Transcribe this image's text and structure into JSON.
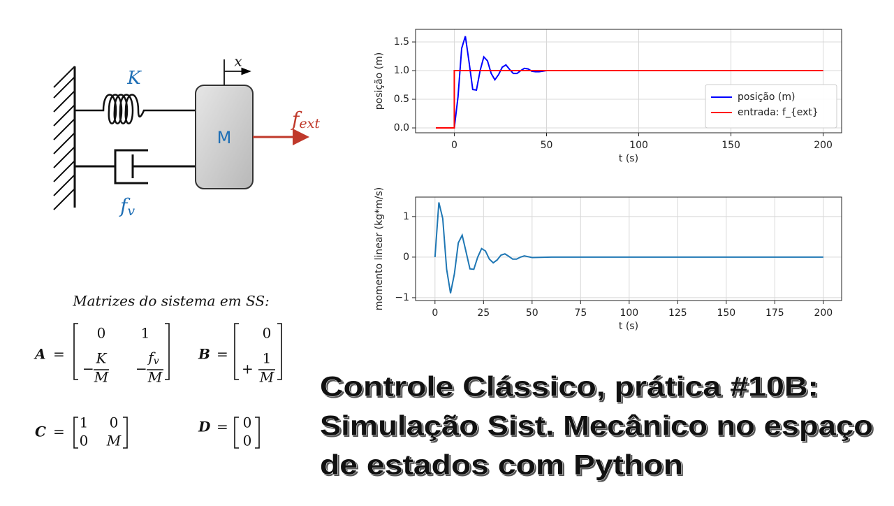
{
  "chart_data": [
    {
      "type": "line",
      "xlabel": "t (s)",
      "ylabel": "posição (m)",
      "xlim": [
        -21,
        210
      ],
      "ylim": [
        -0.085,
        1.72
      ],
      "xticks": [
        0,
        50,
        100,
        150,
        200
      ],
      "yticks": [
        {
          "value": 0,
          "label": "0.0"
        },
        {
          "value": 0.5,
          "label": "0.5"
        },
        {
          "value": 1,
          "label": "1.0"
        },
        {
          "value": 1.5,
          "label": "1.5"
        }
      ],
      "grid": true,
      "legend": "lower right",
      "series": [
        {
          "name": "posição (m)",
          "color": "#0000ff",
          "x": [
            -10,
            0,
            2,
            4,
            6,
            8,
            10,
            12,
            14,
            16,
            18,
            20,
            22,
            24,
            26,
            28,
            30,
            32,
            34,
            36,
            38,
            40,
            42,
            44,
            46,
            50,
            60,
            80,
            100,
            120,
            140,
            160,
            180,
            200
          ],
          "values": [
            0,
            0,
            0.54,
            1.39,
            1.6,
            1.15,
            0.67,
            0.66,
            1.0,
            1.24,
            1.17,
            0.95,
            0.84,
            0.93,
            1.06,
            1.1,
            1.02,
            0.95,
            0.95,
            1.0,
            1.04,
            1.03,
            0.99,
            0.98,
            0.98,
            1.0,
            1.0,
            1.0,
            1.0,
            1.0,
            1.0,
            1.0,
            1.0,
            1.0
          ]
        },
        {
          "name": "entrada: f_{ext}",
          "color": "#ff0000",
          "x": [
            -10,
            0,
            0,
            200
          ],
          "values": [
            0,
            0,
            1,
            1
          ]
        }
      ]
    },
    {
      "type": "line",
      "xlabel": "t (s)",
      "ylabel": "momento linear (kg*m/s)",
      "xlim": [
        -10,
        209.4
      ],
      "ylim": [
        -1.07,
        1.48
      ],
      "xticks": [
        0,
        25,
        50,
        75,
        100,
        125,
        150,
        175,
        200
      ],
      "yticks": [
        {
          "value": -1,
          "label": "−1"
        },
        0,
        1
      ],
      "grid": true,
      "series": [
        {
          "name": "momento linear",
          "color": "#1f77b4",
          "x": [
            0,
            2,
            4,
            6,
            8,
            10,
            12,
            14,
            16,
            18,
            20,
            22,
            24,
            26,
            28,
            30,
            32,
            34,
            36,
            38,
            40,
            42,
            44,
            46,
            50,
            60,
            80,
            100,
            120,
            140,
            160,
            180,
            200
          ],
          "values": [
            0,
            1.35,
            0.95,
            -0.3,
            -0.89,
            -0.41,
            0.35,
            0.54,
            0.13,
            -0.29,
            -0.3,
            0.0,
            0.21,
            0.15,
            -0.05,
            -0.14,
            -0.07,
            0.05,
            0.08,
            0.02,
            -0.05,
            -0.05,
            0,
            0.03,
            -0.01,
            0,
            0,
            0,
            0,
            0,
            0,
            0,
            0
          ]
        }
      ]
    }
  ],
  "diagram": {
    "spring_label": "K",
    "mass_label": "M",
    "displacement_label": "x",
    "force_label": {
      "base": "f",
      "sub": "ext"
    },
    "damper_label": {
      "base": "f",
      "sub": "v"
    }
  },
  "matrices": {
    "caption": "Matrizes do sistema em SS:",
    "equals": "=",
    "A": {
      "name": "A",
      "r0": [
        "0",
        "1"
      ],
      "r1": [
        {
          "sign": "−",
          "num": "K",
          "den": "M"
        },
        {
          "sign": "−",
          "num": "f",
          "sub": "v",
          "den": "M"
        }
      ]
    },
    "B": {
      "name": "B",
      "r0": "0",
      "r1": {
        "sign": "+",
        "num": "1",
        "den": "M"
      }
    },
    "C": {
      "name": "C",
      "cells": [
        [
          "1",
          "0"
        ],
        [
          "0",
          "M"
        ]
      ]
    },
    "D": {
      "name": "D",
      "cells": [
        "0",
        "0"
      ]
    }
  },
  "title": [
    "Controle Clássico, prática #10B:",
    "Simulação Sist. Mecânico no espaço",
    "de estados com Python"
  ]
}
